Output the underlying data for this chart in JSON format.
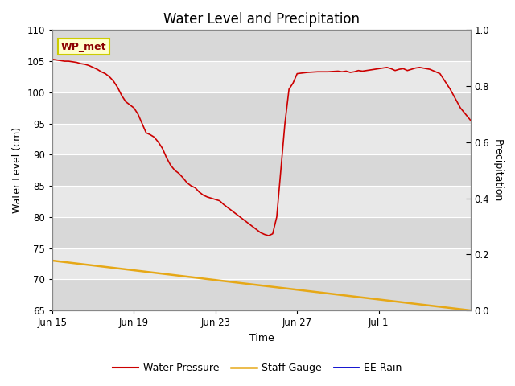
{
  "title": "Water Level and Precipitation",
  "xlabel": "Time",
  "ylabel_left": "Water Level (cm)",
  "ylabel_right": "Precipitation",
  "ylim_left": [
    65,
    110
  ],
  "ylim_right": [
    0.0,
    1.0
  ],
  "yticks_left": [
    65,
    70,
    75,
    80,
    85,
    90,
    95,
    100,
    105,
    110
  ],
  "yticks_right": [
    0.0,
    0.2,
    0.4,
    0.6,
    0.8,
    1.0
  ],
  "annotation_text": "WP_met",
  "bg_color": "#e8e8e8",
  "water_pressure": {
    "label": "Water Pressure",
    "color": "#cc0000",
    "x": [
      0,
      0.2,
      0.4,
      0.6,
      0.8,
      1.0,
      1.2,
      1.4,
      1.6,
      1.8,
      2.0,
      2.2,
      2.4,
      2.6,
      2.8,
      3.0,
      3.2,
      3.4,
      3.6,
      3.8,
      4.0,
      4.2,
      4.4,
      4.6,
      4.8,
      5.0,
      5.2,
      5.4,
      5.6,
      5.8,
      6.0,
      6.2,
      6.4,
      6.6,
      6.8,
      7.0,
      7.2,
      7.4,
      7.6,
      7.8,
      8.0,
      8.2,
      8.4,
      8.6,
      8.8,
      9.0,
      9.2,
      9.4,
      9.6,
      9.8,
      10.0,
      10.2,
      10.4,
      10.6,
      10.8,
      11.0,
      11.2,
      11.4,
      11.6,
      11.8,
      12.0,
      12.5,
      13.0,
      13.5,
      14.0,
      14.2,
      14.4,
      14.6,
      14.8,
      15.0,
      15.2,
      15.4,
      15.6,
      15.8,
      16.0,
      16.2,
      16.4,
      16.6,
      16.8,
      17.0,
      17.2,
      17.4,
      17.6,
      17.8,
      18.0,
      18.5,
      19.0,
      19.5,
      20.0,
      20.5
    ],
    "y": [
      105.3,
      105.2,
      105.1,
      105.0,
      105.0,
      104.9,
      104.8,
      104.6,
      104.5,
      104.3,
      104.0,
      103.7,
      103.3,
      103.0,
      102.5,
      101.8,
      100.8,
      99.5,
      98.5,
      98.0,
      97.5,
      96.5,
      95.0,
      93.5,
      93.2,
      92.8,
      92.0,
      91.0,
      89.5,
      88.3,
      87.5,
      87.0,
      86.3,
      85.5,
      85.0,
      84.7,
      84.0,
      83.5,
      83.2,
      83.0,
      82.8,
      82.6,
      82.0,
      81.5,
      81.0,
      80.5,
      80.0,
      79.5,
      79.0,
      78.5,
      78.0,
      77.5,
      77.2,
      77.0,
      77.3,
      80.0,
      87.5,
      95.0,
      100.5,
      101.5,
      103.0,
      103.2,
      103.3,
      103.3,
      103.4,
      103.3,
      103.4,
      103.2,
      103.3,
      103.5,
      103.4,
      103.5,
      103.6,
      103.7,
      103.8,
      103.9,
      104.0,
      103.8,
      103.5,
      103.7,
      103.8,
      103.5,
      103.7,
      103.9,
      104.0,
      103.7,
      103.0,
      100.5,
      97.5,
      95.5
    ]
  },
  "staff_gauge": {
    "label": "Staff Gauge",
    "color": "#e6a817",
    "x": [
      0,
      20.5
    ],
    "y": [
      73.0,
      65.0
    ]
  },
  "ee_rain": {
    "label": "EE Rain",
    "color": "#0000cc",
    "x": [
      0,
      20.5
    ],
    "y": [
      65.0,
      65.0
    ]
  },
  "xticklabels": [
    "Jun 15",
    "Jun 19",
    "Jun 23",
    "Jun 27",
    "Jul 1"
  ],
  "xtick_positions": [
    0,
    4,
    8,
    12,
    16
  ],
  "xlim": [
    0,
    20.5
  ],
  "title_fontsize": 12,
  "axis_fontsize": 9,
  "tick_fontsize": 8.5,
  "legend_fontsize": 9
}
